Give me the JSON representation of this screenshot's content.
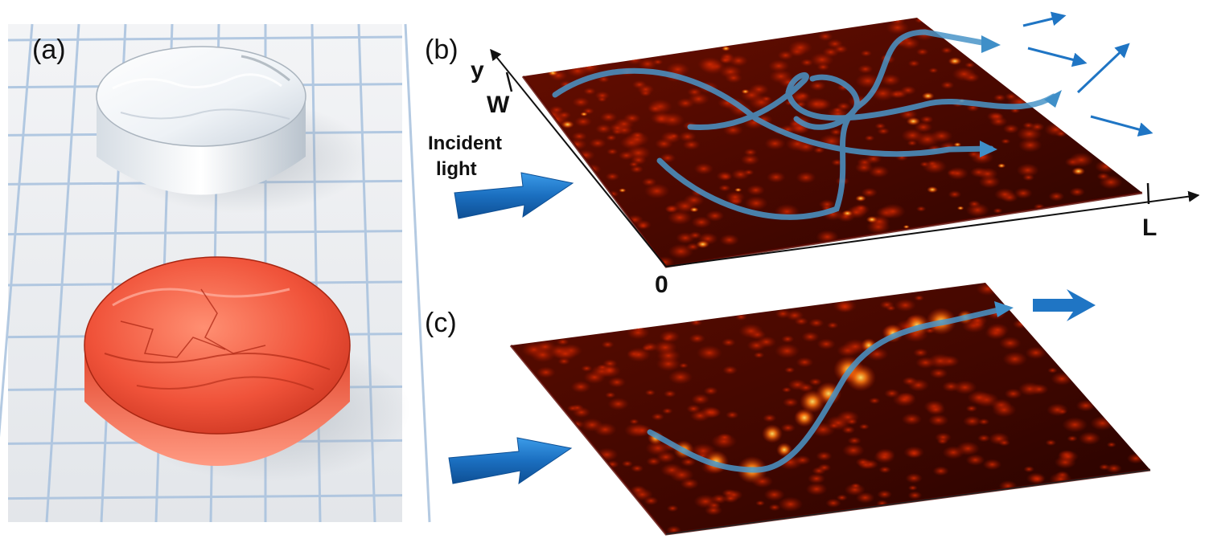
{
  "panels": {
    "a": {
      "label": "(a)",
      "samples": [
        "clear-disk",
        "red-disk"
      ]
    },
    "b": {
      "label": "(b)",
      "axis_y_label": "y",
      "axis_w_label": "W",
      "axis_origin_label": "0",
      "axis_l_label": "L",
      "incident_line1": "Incident",
      "incident_line2": "light"
    },
    "c": {
      "label": "(c)"
    }
  },
  "colors": {
    "surface_dark": "#3a0600",
    "surface_mid": "#8e1600",
    "surface_hot": "#ff6a00",
    "peak": "#ffe36a",
    "path_blue": "#3f8fc8",
    "arrow_blue": "#1f75c4",
    "grid_bg": "#eceff2",
    "grid_line": "#a7c1de",
    "red_disk": "#f0533a"
  },
  "icons": [
    "incident-arrow-icon",
    "output-arrow-icon"
  ]
}
